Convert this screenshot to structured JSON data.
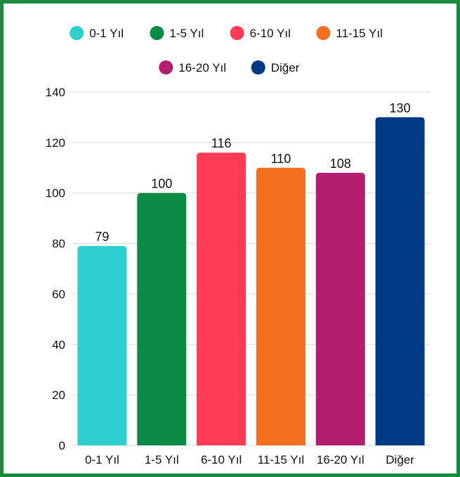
{
  "chart_data": {
    "type": "bar",
    "categories": [
      "0-1 Yıl",
      "1-5 Yıl",
      "6-10 Yıl",
      "11-15 Yıl",
      "16-20 Yıl",
      "Diğer"
    ],
    "values": [
      79,
      100,
      116,
      110,
      108,
      130
    ],
    "colors": [
      "#2ecfcf",
      "#0a8c47",
      "#ff3b55",
      "#f37021",
      "#b31e6f",
      "#003a85"
    ],
    "legend": [
      {
        "label": "0-1 Yıl",
        "color": "#2ecfcf"
      },
      {
        "label": "1-5 Yıl",
        "color": "#0a8c47"
      },
      {
        "label": "6-10 Yıl",
        "color": "#ff3b55"
      },
      {
        "label": "11-15 Yıl",
        "color": "#f37021"
      },
      {
        "label": "16-20 Yıl",
        "color": "#b31e6f"
      },
      {
        "label": "Diğer",
        "color": "#003a85"
      }
    ],
    "legend_position": "top",
    "ylim": [
      0,
      140
    ],
    "yticks": [
      0,
      20,
      40,
      60,
      80,
      100,
      120,
      140
    ],
    "grid": true,
    "title": "",
    "xlabel": "",
    "ylabel": ""
  },
  "frame_color": "#1a8a3c"
}
